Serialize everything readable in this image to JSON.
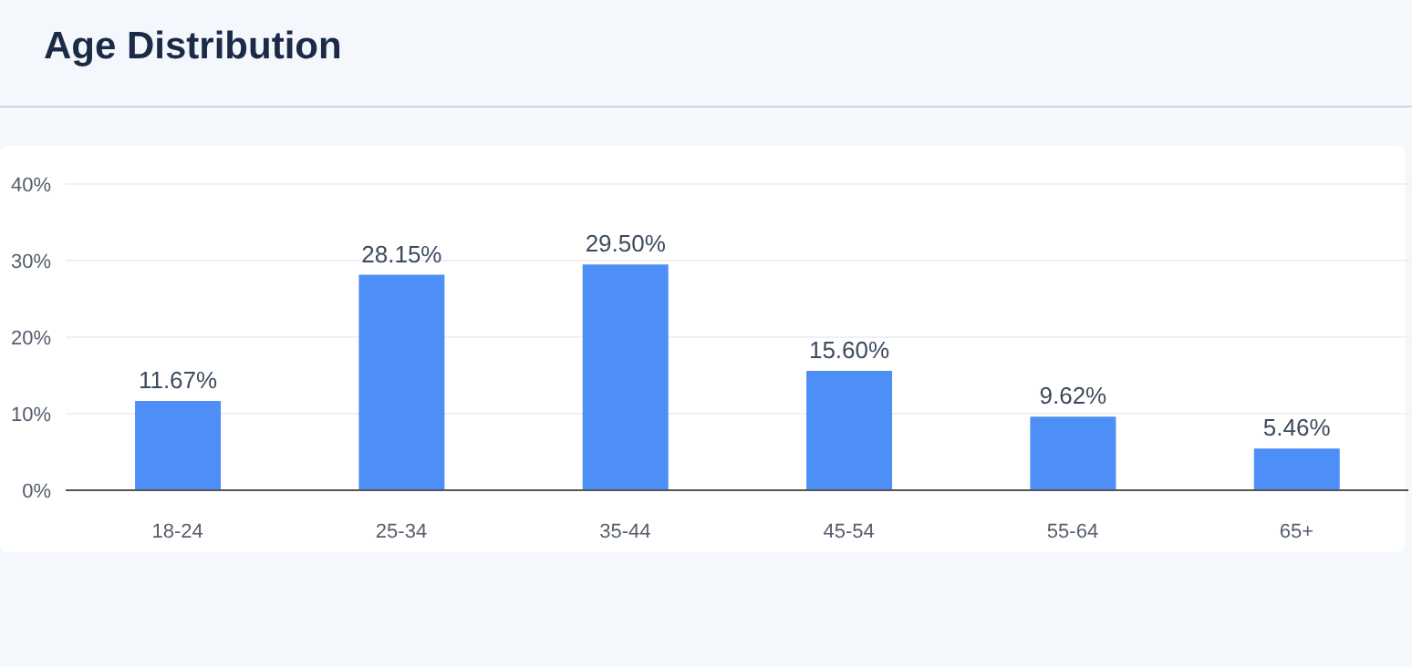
{
  "chart_data": {
    "type": "bar",
    "title": "Age Distribution",
    "categories": [
      "18-24",
      "25-34",
      "35-44",
      "45-54",
      "55-64",
      "65+"
    ],
    "values": [
      11.67,
      28.15,
      29.5,
      15.6,
      9.62,
      5.46
    ],
    "value_labels": [
      "11.67%",
      "28.15%",
      "29.50%",
      "15.60%",
      "9.62%",
      "5.46%"
    ],
    "color": "#4e8ef7",
    "ylim": [
      0,
      40
    ],
    "yticks": [
      {
        "value": 0,
        "label": "0%"
      },
      {
        "value": 10,
        "label": "10%"
      },
      {
        "value": 20,
        "label": "20%"
      },
      {
        "value": 30,
        "label": "30%"
      },
      {
        "value": 40,
        "label": "40%"
      }
    ],
    "grid": "y"
  }
}
